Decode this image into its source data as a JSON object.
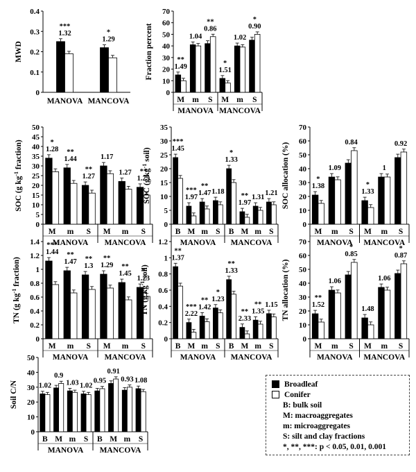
{
  "colors": {
    "broadleaf": "#000000",
    "conifer": "#ffffff"
  },
  "legend": {
    "series": [
      "Broadleaf",
      "Conifer"
    ],
    "notes": [
      "B: bulk soil",
      "M: macroaggregates",
      "m: microaggregates",
      "S: silt and clay fractions",
      "*, **, ***: p < 0.05, 0.01, 0.001"
    ]
  },
  "chart_data": [
    {
      "type": "bar",
      "id": "mwd",
      "ylabel": "MWD",
      "ylim": [
        0,
        0.4
      ],
      "yticks": [
        0,
        0.1,
        0.2,
        0.3,
        0.4
      ],
      "groups": [
        {
          "name": "MANOVA",
          "categories": [
            ""
          ],
          "broadleaf": [
            0.25
          ],
          "conifer": [
            0.19
          ],
          "ratio": [
            "1.32"
          ],
          "sig": [
            "***"
          ]
        },
        {
          "name": "MANCOVA",
          "categories": [
            ""
          ],
          "broadleaf": [
            0.22
          ],
          "conifer": [
            0.17
          ],
          "ratio": [
            "1.29"
          ],
          "sig": [
            "*"
          ]
        }
      ]
    },
    {
      "type": "bar",
      "id": "fraction",
      "ylabel": "Fraction percent",
      "ylim": [
        0,
        70
      ],
      "yticks": [
        0,
        10,
        20,
        30,
        40,
        50,
        60,
        70
      ],
      "groups": [
        {
          "name": "MANOVA",
          "categories": [
            "M",
            "m",
            "S"
          ],
          "broadleaf": [
            15,
            41,
            42
          ],
          "conifer": [
            10,
            40,
            48
          ],
          "ratio": [
            "1.49",
            "1.04",
            "0.86"
          ],
          "sig": [
            "**",
            "",
            "**"
          ]
        },
        {
          "name": "MANCOVA",
          "categories": [
            "M",
            "m",
            "S"
          ],
          "broadleaf": [
            12,
            40,
            45
          ],
          "conifer": [
            8,
            39,
            50
          ],
          "ratio": [
            "1.51",
            "1.02",
            "0.90"
          ],
          "sig": [
            "*",
            "",
            "*"
          ]
        }
      ]
    },
    {
      "type": "bar",
      "id": "soc_fraction",
      "ylabel": "SOC (g kg-1 fraction)",
      "ylim": [
        0,
        50
      ],
      "yticks": [
        0,
        5,
        10,
        15,
        20,
        25,
        30,
        35,
        40,
        45,
        50
      ],
      "groups": [
        {
          "name": "MANOVA",
          "categories": [
            "M",
            "m",
            "S"
          ],
          "broadleaf": [
            34,
            29,
            20
          ],
          "conifer": [
            27,
            21,
            16
          ],
          "ratio": [
            "1.28",
            "1.44",
            "1.27"
          ],
          "sig": [
            "*",
            "**",
            "**"
          ]
        },
        {
          "name": "MANCOVA",
          "categories": [
            "M",
            "m",
            "S"
          ],
          "broadleaf": [
            30,
            22,
            19
          ],
          "conifer": [
            26,
            18,
            15
          ],
          "ratio": [
            "1.17",
            "1.27",
            "1.29"
          ],
          "sig": [
            "",
            "",
            "**"
          ]
        }
      ]
    },
    {
      "type": "bar",
      "id": "soc_soil",
      "ylabel": "SOC (g kg-1 soil)",
      "ylim": [
        0,
        35
      ],
      "yticks": [
        0,
        5,
        10,
        15,
        20,
        25,
        30,
        35
      ],
      "groups": [
        {
          "name": "MANOVA",
          "categories": [
            "B",
            "M",
            "m",
            "S"
          ],
          "broadleaf": [
            24,
            6.5,
            8,
            8.5
          ],
          "conifer": [
            16.5,
            3,
            5.5,
            7
          ],
          "ratio": [
            "1.45",
            "1.97",
            "1.47",
            "1.18"
          ],
          "sig": [
            "***",
            "***",
            "**",
            ""
          ]
        },
        {
          "name": "MANCOVA",
          "categories": [
            "B",
            "M",
            "m",
            "S"
          ],
          "broadleaf": [
            20,
            4.5,
            6.5,
            8
          ],
          "conifer": [
            15,
            2.5,
            5,
            7
          ],
          "ratio": [
            "1.33",
            "1.97",
            "1.31",
            "1.21"
          ],
          "sig": [
            "*",
            "**",
            "",
            ""
          ]
        }
      ]
    },
    {
      "type": "bar",
      "id": "soc_alloc",
      "ylabel": "SOC allocation (%)",
      "ylim": [
        0,
        70
      ],
      "yticks": [
        0,
        10,
        20,
        30,
        40,
        50,
        60,
        70
      ],
      "groups": [
        {
          "name": "MANOVA",
          "categories": [
            "M",
            "m",
            "S"
          ],
          "broadleaf": [
            21,
            34,
            44
          ],
          "conifer": [
            15,
            32,
            53
          ],
          "ratio": [
            "1.38",
            "1.09",
            "0.84"
          ],
          "sig": [
            "*",
            "",
            ""
          ]
        },
        {
          "name": "MANCOVA",
          "categories": [
            "M",
            "m",
            "S"
          ],
          "broadleaf": [
            17,
            34,
            48
          ],
          "conifer": [
            12,
            34,
            52
          ],
          "ratio": [
            "1.33",
            "1",
            "0.92"
          ],
          "sig": [
            "*",
            "",
            ""
          ]
        }
      ]
    },
    {
      "type": "bar",
      "id": "tn_fraction",
      "ylabel": "TN (g kg-1 fraction)",
      "ylim": [
        0,
        1.4
      ],
      "yticks": [
        0,
        0.2,
        0.4,
        0.6,
        0.8,
        1,
        1.2,
        1.4
      ],
      "groups": [
        {
          "name": "MANOVA",
          "categories": [
            "M",
            "m",
            "S"
          ],
          "broadleaf": [
            1.12,
            0.98,
            0.92
          ],
          "conifer": [
            0.78,
            0.66,
            0.71
          ],
          "ratio": [
            "1.44",
            "1.47",
            "1.3"
          ],
          "sig": [
            "***",
            "**",
            "**"
          ]
        },
        {
          "name": "MANCOVA",
          "categories": [
            "M",
            "m",
            "S"
          ],
          "broadleaf": [
            0.93,
            0.81,
            0.74
          ],
          "conifer": [
            0.73,
            0.56,
            0.61
          ],
          "ratio": [
            "1.29",
            "1.45",
            "1.23"
          ],
          "sig": [
            "**",
            "**",
            "*"
          ]
        }
      ]
    },
    {
      "type": "bar",
      "id": "tn_soil",
      "ylabel": "TN (g kg-1 soil)",
      "ylim": [
        0,
        1.2
      ],
      "yticks": [
        0,
        0.2,
        0.4,
        0.6,
        0.8,
        1,
        1.2
      ],
      "groups": [
        {
          "name": "MANOVA",
          "categories": [
            "B",
            "M",
            "m",
            "S"
          ],
          "broadleaf": [
            0.89,
            0.2,
            0.28,
            0.38
          ],
          "conifer": [
            0.65,
            0.08,
            0.21,
            0.32
          ],
          "ratio": [
            "1.37",
            "2.22",
            "1.42",
            "1.23"
          ],
          "sig": [
            "**",
            "***",
            "**",
            "*"
          ]
        },
        {
          "name": "MANCOVA",
          "categories": [
            "B",
            "M",
            "m",
            "S"
          ],
          "broadleaf": [
            0.73,
            0.14,
            0.23,
            0.31
          ],
          "conifer": [
            0.55,
            0.06,
            0.18,
            0.27
          ],
          "ratio": [
            "1.33",
            "2.33",
            "1.35",
            "1.15"
          ],
          "sig": [
            "**",
            "**",
            "**",
            ""
          ]
        }
      ]
    },
    {
      "type": "bar",
      "id": "tn_alloc",
      "ylabel": "TN allocation (%)",
      "ylim": [
        0,
        70
      ],
      "yticks": [
        0,
        10,
        20,
        30,
        40,
        50,
        60,
        70
      ],
      "groups": [
        {
          "name": "MANOVA",
          "categories": [
            "M",
            "m",
            "S"
          ],
          "broadleaf": [
            18,
            35,
            46
          ],
          "conifer": [
            12,
            33,
            55
          ],
          "ratio": [
            "1.52",
            "1.06",
            "0.85"
          ],
          "sig": [
            "**",
            "",
            "*"
          ]
        },
        {
          "name": "MANCOVA",
          "categories": [
            "M",
            "m",
            "S"
          ],
          "broadleaf": [
            15,
            37,
            47
          ],
          "conifer": [
            10,
            35,
            54
          ],
          "ratio": [
            "1.48",
            "1.06",
            "0.87"
          ],
          "sig": [
            "",
            "",
            "*"
          ]
        }
      ]
    },
    {
      "type": "bar",
      "id": "cn",
      "ylabel": "Soil C/N",
      "ylim": [
        0,
        50
      ],
      "yticks": [
        0,
        10,
        20,
        30,
        40,
        50
      ],
      "groups": [
        {
          "name": "MANOVA",
          "categories": [
            "B",
            "M",
            "m",
            "S"
          ],
          "broadleaf": [
            25.5,
            29.5,
            27.5,
            25.5
          ],
          "conifer": [
            25,
            32.5,
            26.5,
            25
          ],
          "ratio": [
            "1.02",
            "0.9",
            "1.03",
            "1.02"
          ],
          "sig": [
            "",
            "",
            "",
            ""
          ]
        },
        {
          "name": "MANCOVA",
          "categories": [
            "B",
            "M",
            "m",
            "S"
          ],
          "broadleaf": [
            27.5,
            32.5,
            28,
            29
          ],
          "conifer": [
            29,
            35.5,
            30,
            27
          ],
          "ratio": [
            "0.95",
            "0.91",
            "0.93",
            "1.08"
          ],
          "sig": [
            "",
            "",
            "",
            ""
          ]
        }
      ]
    }
  ]
}
